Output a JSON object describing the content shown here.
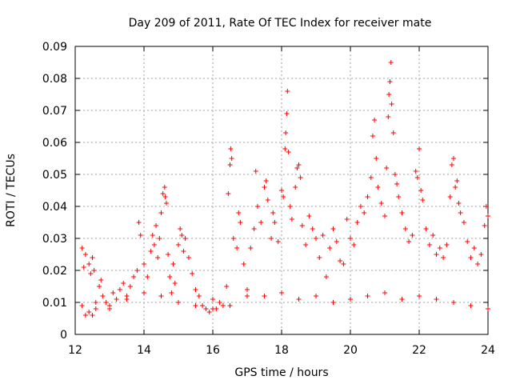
{
  "chart_data": {
    "type": "scatter",
    "title": "Day 209 of 2011, Rate Of TEC Index for receiver mate",
    "xlabel": "GPS time / hours",
    "ylabel": "ROTI / TECUs",
    "xlim": [
      12,
      24
    ],
    "ylim": [
      0,
      0.09
    ],
    "x_ticks": [
      12,
      14,
      16,
      18,
      20,
      22,
      24
    ],
    "x_tick_labels": [
      "12",
      "14",
      "16",
      "18",
      "20",
      "22",
      "24"
    ],
    "y_ticks": [
      0,
      0.01,
      0.02,
      0.03,
      0.04,
      0.05,
      0.06,
      0.07,
      0.08,
      0.09
    ],
    "y_tick_labels": [
      "0",
      "0.01",
      "0.02",
      "0.03",
      "0.04",
      "0.05",
      "0.06",
      "0.07",
      "0.08",
      "0.09"
    ],
    "grid": true,
    "marker": "+",
    "marker_color": "#ff0000",
    "series": [
      {
        "name": "ROTI",
        "points": [
          [
            12.2,
            0.027
          ],
          [
            12.25,
            0.021
          ],
          [
            12.3,
            0.025
          ],
          [
            12.4,
            0.022
          ],
          [
            12.45,
            0.019
          ],
          [
            12.5,
            0.024
          ],
          [
            12.55,
            0.02
          ],
          [
            12.2,
            0.009
          ],
          [
            12.3,
            0.006
          ],
          [
            12.4,
            0.007
          ],
          [
            12.5,
            0.006
          ],
          [
            12.6,
            0.008
          ],
          [
            12.7,
            0.015
          ],
          [
            12.75,
            0.017
          ],
          [
            12.8,
            0.012
          ],
          [
            12.9,
            0.01
          ],
          [
            13.0,
            0.008
          ],
          [
            13.1,
            0.013
          ],
          [
            13.2,
            0.011
          ],
          [
            13.3,
            0.014
          ],
          [
            13.4,
            0.016
          ],
          [
            13.5,
            0.012
          ],
          [
            13.6,
            0.015
          ],
          [
            13.7,
            0.018
          ],
          [
            13.8,
            0.02
          ],
          [
            13.85,
            0.035
          ],
          [
            13.9,
            0.031
          ],
          [
            14.0,
            0.022
          ],
          [
            14.1,
            0.018
          ],
          [
            14.2,
            0.026
          ],
          [
            14.25,
            0.031
          ],
          [
            14.3,
            0.028
          ],
          [
            14.35,
            0.034
          ],
          [
            14.4,
            0.024
          ],
          [
            14.45,
            0.03
          ],
          [
            14.5,
            0.038
          ],
          [
            14.55,
            0.044
          ],
          [
            14.6,
            0.046
          ],
          [
            14.62,
            0.043
          ],
          [
            14.65,
            0.041
          ],
          [
            14.7,
            0.025
          ],
          [
            14.75,
            0.018
          ],
          [
            14.8,
            0.013
          ],
          [
            14.85,
            0.022
          ],
          [
            14.9,
            0.016
          ],
          [
            15.0,
            0.028
          ],
          [
            15.05,
            0.033
          ],
          [
            15.1,
            0.031
          ],
          [
            15.15,
            0.026
          ],
          [
            15.2,
            0.03
          ],
          [
            15.3,
            0.024
          ],
          [
            15.4,
            0.019
          ],
          [
            15.5,
            0.014
          ],
          [
            15.6,
            0.012
          ],
          [
            15.7,
            0.009
          ],
          [
            15.8,
            0.008
          ],
          [
            15.9,
            0.007
          ],
          [
            16.0,
            0.011
          ],
          [
            16.1,
            0.008
          ],
          [
            16.2,
            0.01
          ],
          [
            16.3,
            0.009
          ],
          [
            16.4,
            0.015
          ],
          [
            16.45,
            0.044
          ],
          [
            16.5,
            0.053
          ],
          [
            16.52,
            0.058
          ],
          [
            16.55,
            0.055
          ],
          [
            16.6,
            0.03
          ],
          [
            16.7,
            0.027
          ],
          [
            16.75,
            0.038
          ],
          [
            16.8,
            0.035
          ],
          [
            16.9,
            0.022
          ],
          [
            17.0,
            0.012
          ],
          [
            17.1,
            0.027
          ],
          [
            17.2,
            0.033
          ],
          [
            17.25,
            0.051
          ],
          [
            17.3,
            0.04
          ],
          [
            17.4,
            0.035
          ],
          [
            17.5,
            0.046
          ],
          [
            17.55,
            0.048
          ],
          [
            17.6,
            0.042
          ],
          [
            17.7,
            0.03
          ],
          [
            17.75,
            0.038
          ],
          [
            17.8,
            0.035
          ],
          [
            17.9,
            0.029
          ],
          [
            18.0,
            0.045
          ],
          [
            18.05,
            0.043
          ],
          [
            18.1,
            0.058
          ],
          [
            18.12,
            0.063
          ],
          [
            18.15,
            0.069
          ],
          [
            18.17,
            0.076
          ],
          [
            18.2,
            0.057
          ],
          [
            18.25,
            0.04
          ],
          [
            18.3,
            0.036
          ],
          [
            18.4,
            0.046
          ],
          [
            18.45,
            0.052
          ],
          [
            18.5,
            0.053
          ],
          [
            18.55,
            0.049
          ],
          [
            18.6,
            0.034
          ],
          [
            18.7,
            0.028
          ],
          [
            18.8,
            0.037
          ],
          [
            18.9,
            0.033
          ],
          [
            19.0,
            0.03
          ],
          [
            19.1,
            0.024
          ],
          [
            19.2,
            0.031
          ],
          [
            19.3,
            0.018
          ],
          [
            19.4,
            0.027
          ],
          [
            19.5,
            0.033
          ],
          [
            19.6,
            0.029
          ],
          [
            19.7,
            0.023
          ],
          [
            19.8,
            0.022
          ],
          [
            19.9,
            0.036
          ],
          [
            20.0,
            0.03
          ],
          [
            20.1,
            0.028
          ],
          [
            20.2,
            0.035
          ],
          [
            20.3,
            0.04
          ],
          [
            20.4,
            0.038
          ],
          [
            20.5,
            0.043
          ],
          [
            20.6,
            0.049
          ],
          [
            20.65,
            0.062
          ],
          [
            20.7,
            0.067
          ],
          [
            20.75,
            0.055
          ],
          [
            20.8,
            0.046
          ],
          [
            20.9,
            0.041
          ],
          [
            21.0,
            0.037
          ],
          [
            21.05,
            0.052
          ],
          [
            21.1,
            0.068
          ],
          [
            21.12,
            0.075
          ],
          [
            21.15,
            0.079
          ],
          [
            21.18,
            0.085
          ],
          [
            21.2,
            0.072
          ],
          [
            21.25,
            0.063
          ],
          [
            21.3,
            0.05
          ],
          [
            21.35,
            0.047
          ],
          [
            21.4,
            0.043
          ],
          [
            21.5,
            0.038
          ],
          [
            21.6,
            0.033
          ],
          [
            21.7,
            0.029
          ],
          [
            21.8,
            0.031
          ],
          [
            21.9,
            0.051
          ],
          [
            21.95,
            0.049
          ],
          [
            22.0,
            0.058
          ],
          [
            22.05,
            0.045
          ],
          [
            22.1,
            0.042
          ],
          [
            22.2,
            0.033
          ],
          [
            22.3,
            0.028
          ],
          [
            22.4,
            0.031
          ],
          [
            22.5,
            0.025
          ],
          [
            22.6,
            0.027
          ],
          [
            22.7,
            0.024
          ],
          [
            22.8,
            0.028
          ],
          [
            22.9,
            0.043
          ],
          [
            22.95,
            0.053
          ],
          [
            23.0,
            0.055
          ],
          [
            23.05,
            0.046
          ],
          [
            23.1,
            0.048
          ],
          [
            23.15,
            0.041
          ],
          [
            23.2,
            0.038
          ],
          [
            23.3,
            0.035
          ],
          [
            23.4,
            0.029
          ],
          [
            23.5,
            0.024
          ],
          [
            23.6,
            0.027
          ],
          [
            23.7,
            0.022
          ],
          [
            23.8,
            0.025
          ],
          [
            23.9,
            0.034
          ],
          [
            23.95,
            0.04
          ],
          [
            24.0,
            0.037
          ],
          [
            12.6,
            0.01
          ],
          [
            13.0,
            0.009
          ],
          [
            13.5,
            0.011
          ],
          [
            14.0,
            0.013
          ],
          [
            14.5,
            0.012
          ],
          [
            15.0,
            0.01
          ],
          [
            15.5,
            0.009
          ],
          [
            16.0,
            0.008
          ],
          [
            16.5,
            0.009
          ],
          [
            17.0,
            0.014
          ],
          [
            17.5,
            0.012
          ],
          [
            18.0,
            0.013
          ],
          [
            18.5,
            0.011
          ],
          [
            19.0,
            0.012
          ],
          [
            19.5,
            0.01
          ],
          [
            20.0,
            0.011
          ],
          [
            20.5,
            0.012
          ],
          [
            21.0,
            0.013
          ],
          [
            21.5,
            0.011
          ],
          [
            22.0,
            0.012
          ],
          [
            22.5,
            0.011
          ],
          [
            23.0,
            0.01
          ],
          [
            23.5,
            0.009
          ],
          [
            24.0,
            0.008
          ]
        ]
      }
    ]
  }
}
